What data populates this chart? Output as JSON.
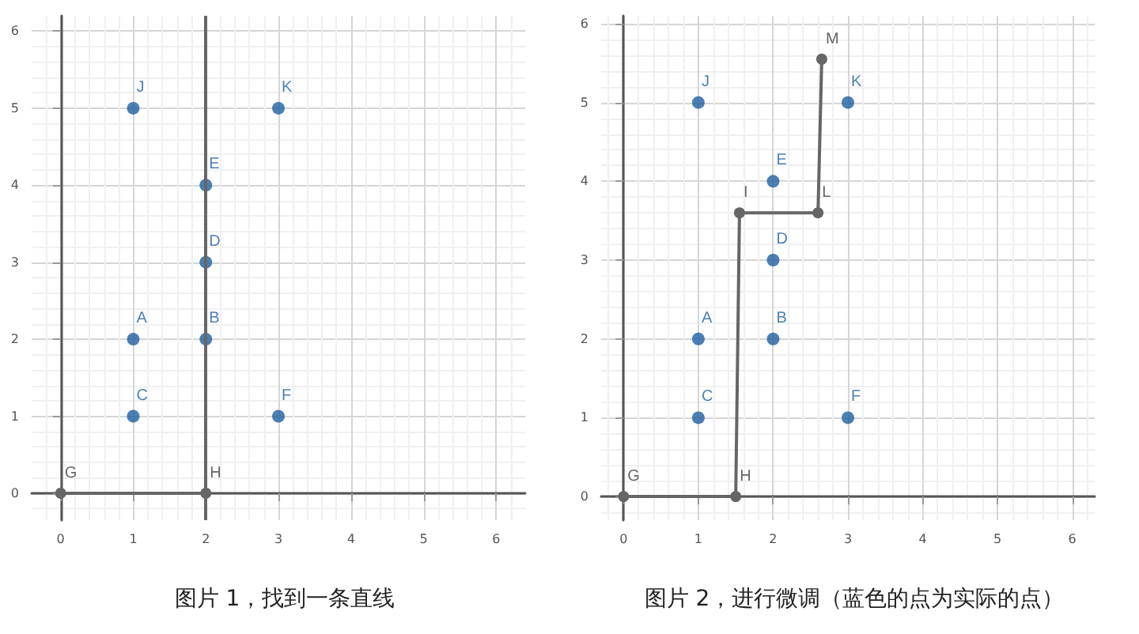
{
  "chart_data": [
    {
      "type": "scatter",
      "title": "图片 1，找到一条直线",
      "xlim": [
        -0.4,
        6.4
      ],
      "ylim": [
        -0.35,
        6.2
      ],
      "xticks": [
        0,
        1,
        2,
        3,
        4,
        5,
        6
      ],
      "yticks": [
        0,
        1,
        2,
        3,
        4,
        5,
        6
      ],
      "grid": true,
      "marker": "circle",
      "series": [
        {
          "type": "line",
          "color": "#666666",
          "x": [
            0,
            2
          ],
          "values": [
            0,
            0
          ],
          "value_labels": [
            "G",
            "H"
          ]
        },
        {
          "color": "#1f5fa0",
          "x": [
            1,
            3,
            2,
            2,
            1,
            2,
            1,
            3
          ],
          "values": [
            5,
            5,
            4,
            3,
            2,
            2,
            1,
            1
          ],
          "value_labels": [
            "J",
            "K",
            "E",
            "D",
            "A",
            "B",
            "C",
            "F"
          ]
        }
      ],
      "ref_lines": [
        {
          "axis": "x",
          "value": 2,
          "color": "#666666"
        }
      ]
    },
    {
      "type": "scatter",
      "title": "图片 2，进行微调（蓝色的点为实际的点）",
      "xlim": [
        -0.3,
        6.3
      ],
      "ylim": [
        -0.3,
        6.1
      ],
      "xticks": [
        0,
        1,
        2,
        3,
        4,
        5,
        6
      ],
      "yticks": [
        0,
        1,
        2,
        3,
        4,
        5,
        6
      ],
      "grid": true,
      "marker": "circle",
      "series": [
        {
          "type": "line",
          "color": "#666666",
          "x": [
            0,
            1.5,
            1.55,
            2.6,
            2.65
          ],
          "values": [
            0,
            0,
            3.6,
            3.6,
            5.55
          ],
          "value_labels": [
            "G",
            "H",
            "I",
            "L",
            "M"
          ]
        },
        {
          "color": "#1f5fa0",
          "x": [
            1,
            3,
            2,
            2,
            1,
            2,
            1,
            3
          ],
          "values": [
            5,
            5,
            4,
            3,
            2,
            2,
            1,
            1
          ],
          "value_labels": [
            "J",
            "K",
            "E",
            "D",
            "A",
            "B",
            "C",
            "F"
          ]
        }
      ]
    }
  ]
}
